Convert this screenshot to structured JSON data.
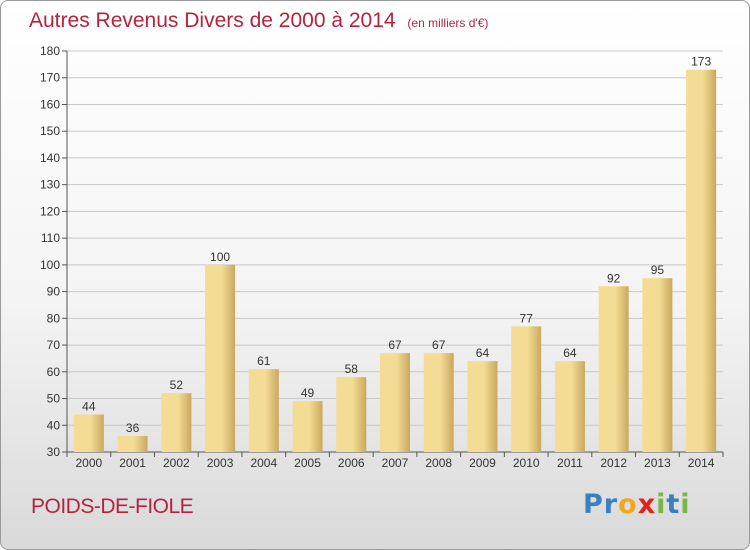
{
  "header": {
    "title": "Autres Revenus Divers de 2000 à 2014",
    "subtitle": "(en milliers d'€)"
  },
  "footer": {
    "commune": "POIDS-DE-FIOLE",
    "brand_letters": [
      {
        "ch": "P",
        "color": "#3a7fc1"
      },
      {
        "ch": "r",
        "color": "#3a7fc1"
      },
      {
        "ch": "o",
        "color": "#f0a81c"
      },
      {
        "ch": "x",
        "color": "#e2231a"
      },
      {
        "ch": "i",
        "color": "#7ab648"
      },
      {
        "ch": "t",
        "color": "#3a7fc1"
      },
      {
        "ch": "i",
        "color": "#7ab648"
      }
    ]
  },
  "colors": {
    "title": "#b5243f",
    "bar_light": "#f4dc94",
    "bar_dark": "#c9a85e",
    "grid": "#c8c8c8"
  },
  "chart_data": {
    "type": "bar",
    "title": "Autres Revenus Divers de 2000 à 2014",
    "subtitle": "(en milliers d'€)",
    "categories": [
      "2000",
      "2001",
      "2002",
      "2003",
      "2004",
      "2005",
      "2006",
      "2007",
      "2008",
      "2009",
      "2010",
      "2011",
      "2012",
      "2013",
      "2014"
    ],
    "values": [
      44,
      36,
      52,
      100,
      61,
      49,
      58,
      67,
      67,
      64,
      77,
      64,
      92,
      95,
      173
    ],
    "ylim": [
      30,
      180
    ],
    "yticks": [
      30,
      40,
      50,
      60,
      70,
      80,
      90,
      100,
      110,
      120,
      130,
      140,
      150,
      160,
      170,
      180
    ],
    "grid": true,
    "data_labels": true
  }
}
